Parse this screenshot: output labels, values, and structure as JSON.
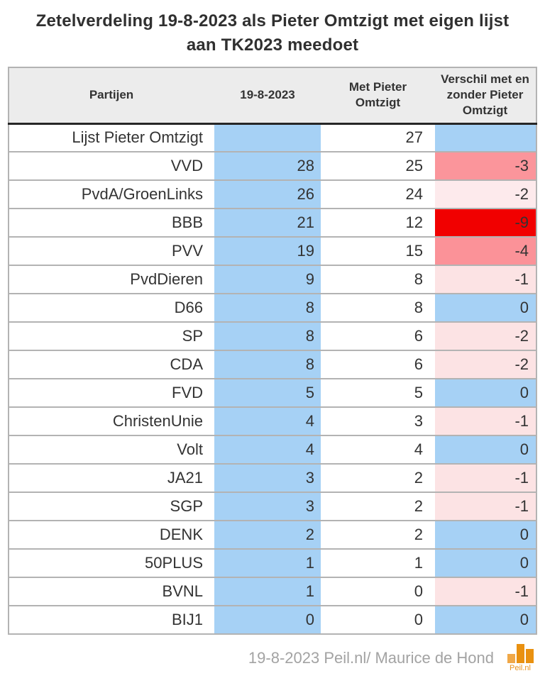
{
  "title": {
    "line1": "Zetelverdeling 19-8-2023 als Pieter Omtzigt met eigen lijst",
    "line2": "aan TK2023 meedoet"
  },
  "chart_data": {
    "type": "table",
    "title": "Zetelverdeling 19-8-2023 als Pieter Omtzigt met eigen lijst aan TK2023 meedoet",
    "columns": [
      "Partijen",
      "19-8-2023",
      "Met Pieter Omtzigt",
      "Verschil met en zonder Pieter Omtzigt"
    ],
    "rows": [
      {
        "party": "Lijst Pieter Omtzigt",
        "seats_19_8_2023": "",
        "seats_with_omtzigt": "27",
        "diff": "",
        "diff_bg": "#a6d1f5"
      },
      {
        "party": "VVD",
        "seats_19_8_2023": "28",
        "seats_with_omtzigt": "25",
        "diff": "-3",
        "diff_bg": "#fb959b"
      },
      {
        "party": "PvdA/GroenLinks",
        "seats_19_8_2023": "26",
        "seats_with_omtzigt": "24",
        "diff": "-2",
        "diff_bg": "#fdeaec"
      },
      {
        "party": "BBB",
        "seats_19_8_2023": "21",
        "seats_with_omtzigt": "12",
        "diff": "-9",
        "diff_bg": "#f10000"
      },
      {
        "party": "PVV",
        "seats_19_8_2023": "19",
        "seats_with_omtzigt": "15",
        "diff": "-4",
        "diff_bg": "#fb9298"
      },
      {
        "party": "PvdDieren",
        "seats_19_8_2023": "9",
        "seats_with_omtzigt": "8",
        "diff": "-1",
        "diff_bg": "#fce3e4"
      },
      {
        "party": "D66",
        "seats_19_8_2023": "8",
        "seats_with_omtzigt": "8",
        "diff": "0",
        "diff_bg": "#a6d1f5"
      },
      {
        "party": "SP",
        "seats_19_8_2023": "8",
        "seats_with_omtzigt": "6",
        "diff": "-2",
        "diff_bg": "#fce3e4"
      },
      {
        "party": "CDA",
        "seats_19_8_2023": "8",
        "seats_with_omtzigt": "6",
        "diff": "-2",
        "diff_bg": "#fce3e4"
      },
      {
        "party": "FVD",
        "seats_19_8_2023": "5",
        "seats_with_omtzigt": "5",
        "diff": "0",
        "diff_bg": "#a6d1f5"
      },
      {
        "party": "ChristenUnie",
        "seats_19_8_2023": "4",
        "seats_with_omtzigt": "3",
        "diff": "-1",
        "diff_bg": "#fce3e4"
      },
      {
        "party": "Volt",
        "seats_19_8_2023": "4",
        "seats_with_omtzigt": "4",
        "diff": "0",
        "diff_bg": "#a6d1f5"
      },
      {
        "party": "JA21",
        "seats_19_8_2023": "3",
        "seats_with_omtzigt": "2",
        "diff": "-1",
        "diff_bg": "#fce3e4"
      },
      {
        "party": "SGP",
        "seats_19_8_2023": "3",
        "seats_with_omtzigt": "2",
        "diff": "-1",
        "diff_bg": "#fce3e4"
      },
      {
        "party": "DENK",
        "seats_19_8_2023": "2",
        "seats_with_omtzigt": "2",
        "diff": "0",
        "diff_bg": "#a6d1f5"
      },
      {
        "party": "50PLUS",
        "seats_19_8_2023": "1",
        "seats_with_omtzigt": "1",
        "diff": "0",
        "diff_bg": "#a6d1f5"
      },
      {
        "party": "BVNL",
        "seats_19_8_2023": "1",
        "seats_with_omtzigt": "0",
        "diff": "-1",
        "diff_bg": "#fce3e4"
      },
      {
        "party": "BIJ1",
        "seats_19_8_2023": "0",
        "seats_with_omtzigt": "0",
        "diff": "0",
        "diff_bg": "#a6d1f5"
      }
    ]
  },
  "colors": {
    "seat_col_bg": "#a6d1f5",
    "header_bg": "#ececec",
    "grid_border": "#b3b3b3",
    "header_bottom_border": "#262626",
    "text": "#333333",
    "title_text": "#303030",
    "footer_text": "#a3a3a3",
    "diff_red_strong": "#f10000",
    "diff_pink_medium": "#fb9399",
    "diff_pink_light": "#fce3e4",
    "diff_blue_zero": "#a6d1f5"
  },
  "footer": {
    "caption": "19-8-2023 Peil.nl/ Maurice de Hond",
    "logo_text": "Peil.nl",
    "logo_colors": {
      "light_bar": "#f0a848",
      "dark_bar": "#e99110",
      "text": "#e8921c"
    }
  }
}
